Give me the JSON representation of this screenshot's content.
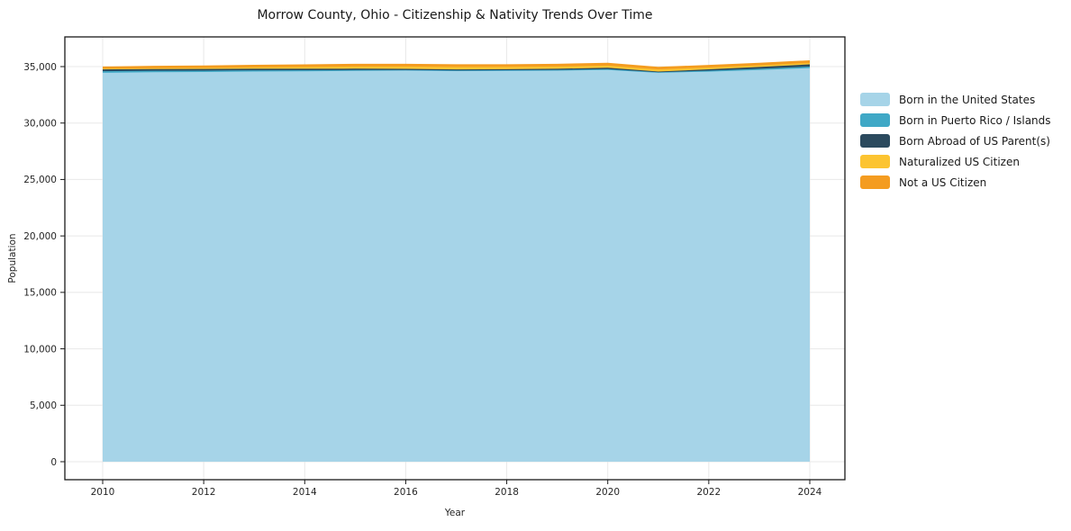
{
  "chart": {
    "title": "Morrow County, Ohio - Citizenship & Nativity Trends Over Time",
    "xlabel": "Year",
    "ylabel": "Population"
  },
  "chart_data": {
    "type": "area",
    "stacked": true,
    "title": "Morrow County, Ohio - Citizenship & Nativity Trends Over Time",
    "xlabel": "Year",
    "ylabel": "Population",
    "x": [
      2010,
      2011,
      2012,
      2013,
      2014,
      2015,
      2016,
      2017,
      2018,
      2019,
      2020,
      2021,
      2022,
      2023,
      2024
    ],
    "series": [
      {
        "name": "Born in the United States",
        "color": "#a6d4e8",
        "values": [
          34450,
          34500,
          34520,
          34560,
          34580,
          34620,
          34650,
          34600,
          34620,
          34640,
          34700,
          34450,
          34550,
          34700,
          34870
        ]
      },
      {
        "name": "Born in Puerto Rico / Islands",
        "color": "#3fa8c6",
        "values": [
          140,
          130,
          120,
          110,
          100,
          80,
          50,
          60,
          60,
          70,
          80,
          50,
          90,
          110,
          130
        ]
      },
      {
        "name": "Born Abroad of US Parent(s)",
        "color": "#2b4a5e",
        "values": [
          160,
          150,
          150,
          140,
          130,
          120,
          100,
          90,
          90,
          100,
          120,
          60,
          120,
          160,
          200
        ]
      },
      {
        "name": "Naturalized US Citizen",
        "color": "#fcc431",
        "values": [
          60,
          80,
          100,
          130,
          160,
          190,
          210,
          220,
          210,
          200,
          190,
          190,
          160,
          140,
          120
        ]
      },
      {
        "name": "Not a US Citizen",
        "color": "#f49c20",
        "values": [
          200,
          210,
          210,
          220,
          230,
          235,
          240,
          235,
          230,
          240,
          250,
          225,
          230,
          235,
          240
        ]
      }
    ],
    "xticks": [
      2010,
      2012,
      2014,
      2016,
      2018,
      2020,
      2022,
      2024
    ],
    "yticks": [
      0,
      5000,
      10000,
      15000,
      20000,
      25000,
      30000,
      35000
    ],
    "ylim": [
      0,
      35000
    ],
    "xlim": [
      2010,
      2024
    ],
    "grid": true,
    "legend_position": "right-outside"
  },
  "style": {
    "grid_color": "#e8e8e8",
    "spine_color": "#1a1a1a",
    "tick_label_color": "#262626",
    "background": "#ffffff"
  }
}
